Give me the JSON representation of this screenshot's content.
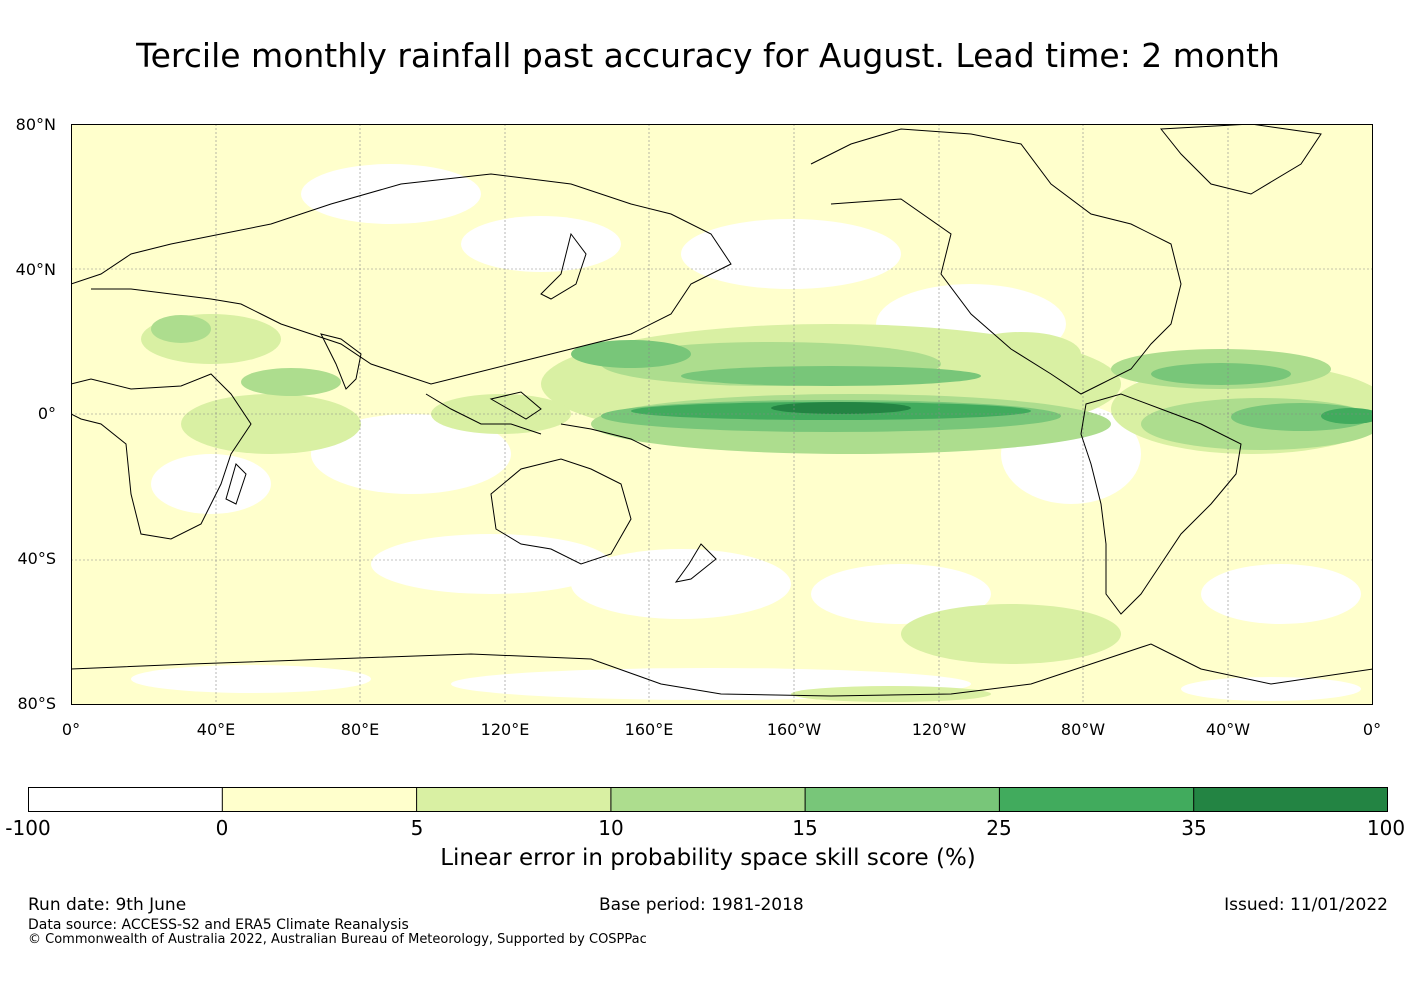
{
  "title": "Tercile monthly rainfall past accuracy for August. Lead time: 2 month",
  "map": {
    "lat_labels": [
      "80°N",
      "40°N",
      "0°",
      "40°S",
      "80°S"
    ],
    "lon_labels": [
      "0°",
      "40°E",
      "80°E",
      "120°E",
      "160°E",
      "160°W",
      "120°W",
      "80°W",
      "40°W",
      "0°"
    ]
  },
  "colorbar": {
    "label": "Linear error in probability space skill score (%)",
    "ticks": [
      "-100",
      "0",
      "5",
      "10",
      "15",
      "25",
      "35",
      "100"
    ],
    "colors": [
      "#ffffff",
      "#ffffcc",
      "#d9f0a3",
      "#addd8e",
      "#78c679",
      "#41ab5d",
      "#238443"
    ]
  },
  "footer": {
    "run_date": "Run date: 9th June",
    "base_period": "Base period: 1981-2018",
    "issued": "Issued: 11/01/2022",
    "data_source": "Data source: ACCESS-S2 and ERA5 Climate Reanalysis",
    "copyright": "© Commonwealth of Australia 2022, Australian Bureau of Meteorology, Supported by COSPPac"
  }
}
